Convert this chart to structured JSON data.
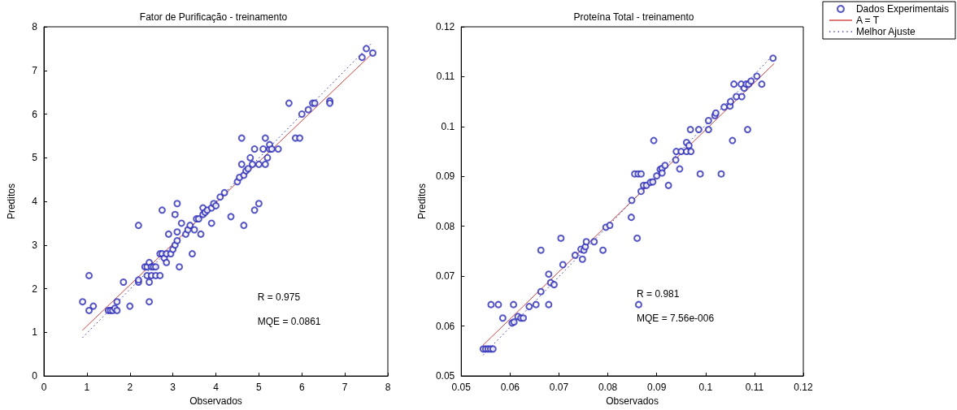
{
  "chart_data": [
    {
      "type": "scatter",
      "title": "Fator de Purificação - treinamento",
      "xlabel": "Observados",
      "ylabel": "Preditos",
      "xlim": [
        0,
        8
      ],
      "ylim": [
        0,
        8
      ],
      "xticks": [
        0,
        1,
        2,
        3,
        4,
        5,
        6,
        7,
        8
      ],
      "yticks": [
        0,
        1,
        2,
        3,
        4,
        5,
        6,
        7,
        8
      ],
      "grid": false,
      "legend": false,
      "marker": "circle",
      "annotations": [
        "R = 0.975",
        "MQE = 0.0861"
      ],
      "series": [
        {
          "type": "scatter",
          "color": "#2a2ab8",
          "x": [
            0.9,
            1.05,
            1.05,
            1.15,
            1.5,
            1.55,
            1.6,
            1.65,
            1.7,
            1.7,
            1.85,
            2.0,
            2.2,
            2.2,
            2.2,
            2.35,
            2.4,
            2.4,
            2.45,
            2.45,
            2.45,
            2.5,
            2.5,
            2.55,
            2.6,
            2.6,
            2.7,
            2.7,
            2.75,
            2.75,
            2.8,
            2.85,
            2.85,
            2.9,
            2.95,
            3.0,
            3.05,
            3.05,
            3.1,
            3.1,
            3.1,
            3.15,
            3.2,
            3.3,
            3.35,
            3.4,
            3.45,
            3.5,
            3.55,
            3.6,
            3.65,
            3.7,
            3.7,
            3.75,
            3.8,
            3.9,
            3.9,
            3.95,
            4.0,
            4.1,
            4.2,
            4.35,
            4.5,
            4.55,
            4.6,
            4.6,
            4.65,
            4.65,
            4.7,
            4.75,
            4.8,
            4.85,
            4.9,
            4.9,
            5.0,
            5.0,
            5.1,
            5.15,
            5.15,
            5.2,
            5.25,
            5.25,
            5.3,
            5.45,
            5.7,
            5.85,
            5.95,
            6.0,
            6.15,
            6.25,
            6.3,
            6.65,
            6.65,
            7.4,
            7.5,
            7.65
          ],
          "values": [
            1.7,
            2.3,
            1.5,
            1.6,
            1.5,
            1.5,
            1.5,
            1.55,
            1.5,
            1.7,
            2.15,
            1.6,
            2.15,
            2.2,
            3.45,
            2.5,
            2.3,
            2.5,
            2.6,
            1.7,
            2.15,
            2.3,
            2.5,
            2.5,
            2.3,
            2.5,
            2.3,
            2.8,
            2.8,
            3.8,
            2.7,
            2.8,
            2.6,
            3.25,
            2.8,
            2.9,
            3.0,
            3.7,
            3.3,
            3.1,
            3.95,
            2.5,
            3.5,
            3.25,
            3.35,
            3.45,
            2.8,
            3.35,
            3.6,
            3.6,
            3.25,
            3.85,
            3.7,
            3.75,
            3.8,
            3.5,
            3.85,
            3.95,
            3.9,
            4.1,
            4.2,
            3.65,
            4.45,
            4.55,
            4.85,
            5.45,
            4.6,
            3.45,
            4.7,
            4.75,
            5.0,
            4.85,
            5.2,
            3.8,
            4.85,
            3.95,
            5.2,
            4.85,
            5.45,
            5.0,
            5.2,
            5.3,
            5.2,
            5.2,
            6.25,
            5.45,
            5.45,
            6.0,
            6.1,
            6.25,
            6.25,
            6.3,
            6.25,
            7.3,
            7.5,
            7.4
          ]
        },
        {
          "type": "line",
          "color": "#d04040",
          "line_style": "solid",
          "marker": "none",
          "x": [
            0.9,
            7.65
          ],
          "values": [
            1.05,
            7.4
          ]
        },
        {
          "type": "line",
          "color": "#4040a0",
          "line_style": "dotted",
          "marker": "none",
          "x": [
            0.9,
            7.65
          ],
          "values": [
            0.88,
            7.65
          ]
        }
      ]
    },
    {
      "type": "scatter",
      "title": "Proteína Total - treinamento",
      "xlabel": "Observados",
      "ylabel": "Preditos",
      "xlim": [
        0.05,
        0.12
      ],
      "ylim": [
        0.05,
        0.12
      ],
      "xticks": [
        0.05,
        0.06,
        0.07,
        0.08,
        0.09,
        0.1,
        0.11,
        0.12
      ],
      "yticks": [
        0.05,
        0.06,
        0.07,
        0.08,
        0.09,
        0.1,
        0.11,
        0.12
      ],
      "grid": false,
      "legend": "top right",
      "marker": "circle",
      "annotations": [
        "R = 0.981",
        "MQE = 7.56e-006"
      ],
      "series": [
        {
          "type": "scatter",
          "name": "Dados Experimentais",
          "color": "#2a2ab8",
          "x": [
            0.0545,
            0.055,
            0.0555,
            0.056,
            0.0565,
            0.0561,
            0.0576,
            0.0585,
            0.0607,
            0.0604,
            0.0608,
            0.0616,
            0.0622,
            0.0627,
            0.0639,
            0.0653,
            0.0663,
            0.0663,
            0.0679,
            0.0679,
            0.0683,
            0.069,
            0.0704,
            0.0708,
            0.0733,
            0.0745,
            0.0748,
            0.0751,
            0.0754,
            0.0756,
            0.0772,
            0.079,
            0.0796,
            0.0804,
            0.0848,
            0.0849,
            0.0855,
            0.0862,
            0.0868,
            0.086,
            0.0863,
            0.0868,
            0.0873,
            0.0879,
            0.0887,
            0.0892,
            0.0894,
            0.09,
            0.0907,
            0.0911,
            0.0911,
            0.0917,
            0.0924,
            0.0939,
            0.094,
            0.0947,
            0.095,
            0.0961,
            0.0961,
            0.0966,
            0.097,
            0.0969,
            0.0986,
            0.0989,
            0.1006,
            0.1006,
            0.1019,
            0.1021,
            0.1032,
            0.1038,
            0.105,
            0.1051,
            0.1055,
            0.1058,
            0.1063,
            0.1073,
            0.1074,
            0.1079,
            0.1083,
            0.1088,
            0.1086,
            0.1093,
            0.1105,
            0.1115,
            0.1138
          ],
          "values": [
            0.0554,
            0.0554,
            0.0554,
            0.0554,
            0.0554,
            0.0643,
            0.0643,
            0.0616,
            0.0643,
            0.0606,
            0.0608,
            0.0619,
            0.0616,
            0.0616,
            0.0639,
            0.0643,
            0.0669,
            0.0752,
            0.0704,
            0.0643,
            0.0687,
            0.0683,
            0.0776,
            0.0723,
            0.0742,
            0.0754,
            0.0734,
            0.0752,
            0.0759,
            0.0769,
            0.0769,
            0.0752,
            0.0798,
            0.0802,
            0.0818,
            0.0852,
            0.0905,
            0.0905,
            0.0905,
            0.0776,
            0.0643,
            0.087,
            0.0882,
            0.0882,
            0.0888,
            0.0889,
            0.0972,
            0.0901,
            0.0914,
            0.0916,
            0.0907,
            0.0922,
            0.0882,
            0.0933,
            0.095,
            0.0915,
            0.095,
            0.0968,
            0.095,
            0.0962,
            0.095,
            0.0994,
            0.0994,
            0.0905,
            0.0994,
            0.1012,
            0.1022,
            0.1027,
            0.0905,
            0.1039,
            0.1041,
            0.105,
            0.0972,
            0.1085,
            0.106,
            0.1085,
            0.106,
            0.1077,
            0.1085,
            0.1085,
            0.0994,
            0.1091,
            0.1101,
            0.1085,
            0.1137
          ]
        },
        {
          "type": "line",
          "name": "A = T",
          "color": "#d04040",
          "line_style": "solid",
          "marker": "none",
          "x": [
            0.0545,
            0.114
          ],
          "values": [
            0.0562,
            0.1126
          ]
        },
        {
          "type": "line",
          "name": "Melhor Ajuste",
          "color": "#4040a0",
          "line_style": "dotted",
          "marker": "none",
          "x": [
            0.0545,
            0.114
          ],
          "values": [
            0.0542,
            0.1145
          ]
        }
      ]
    }
  ]
}
